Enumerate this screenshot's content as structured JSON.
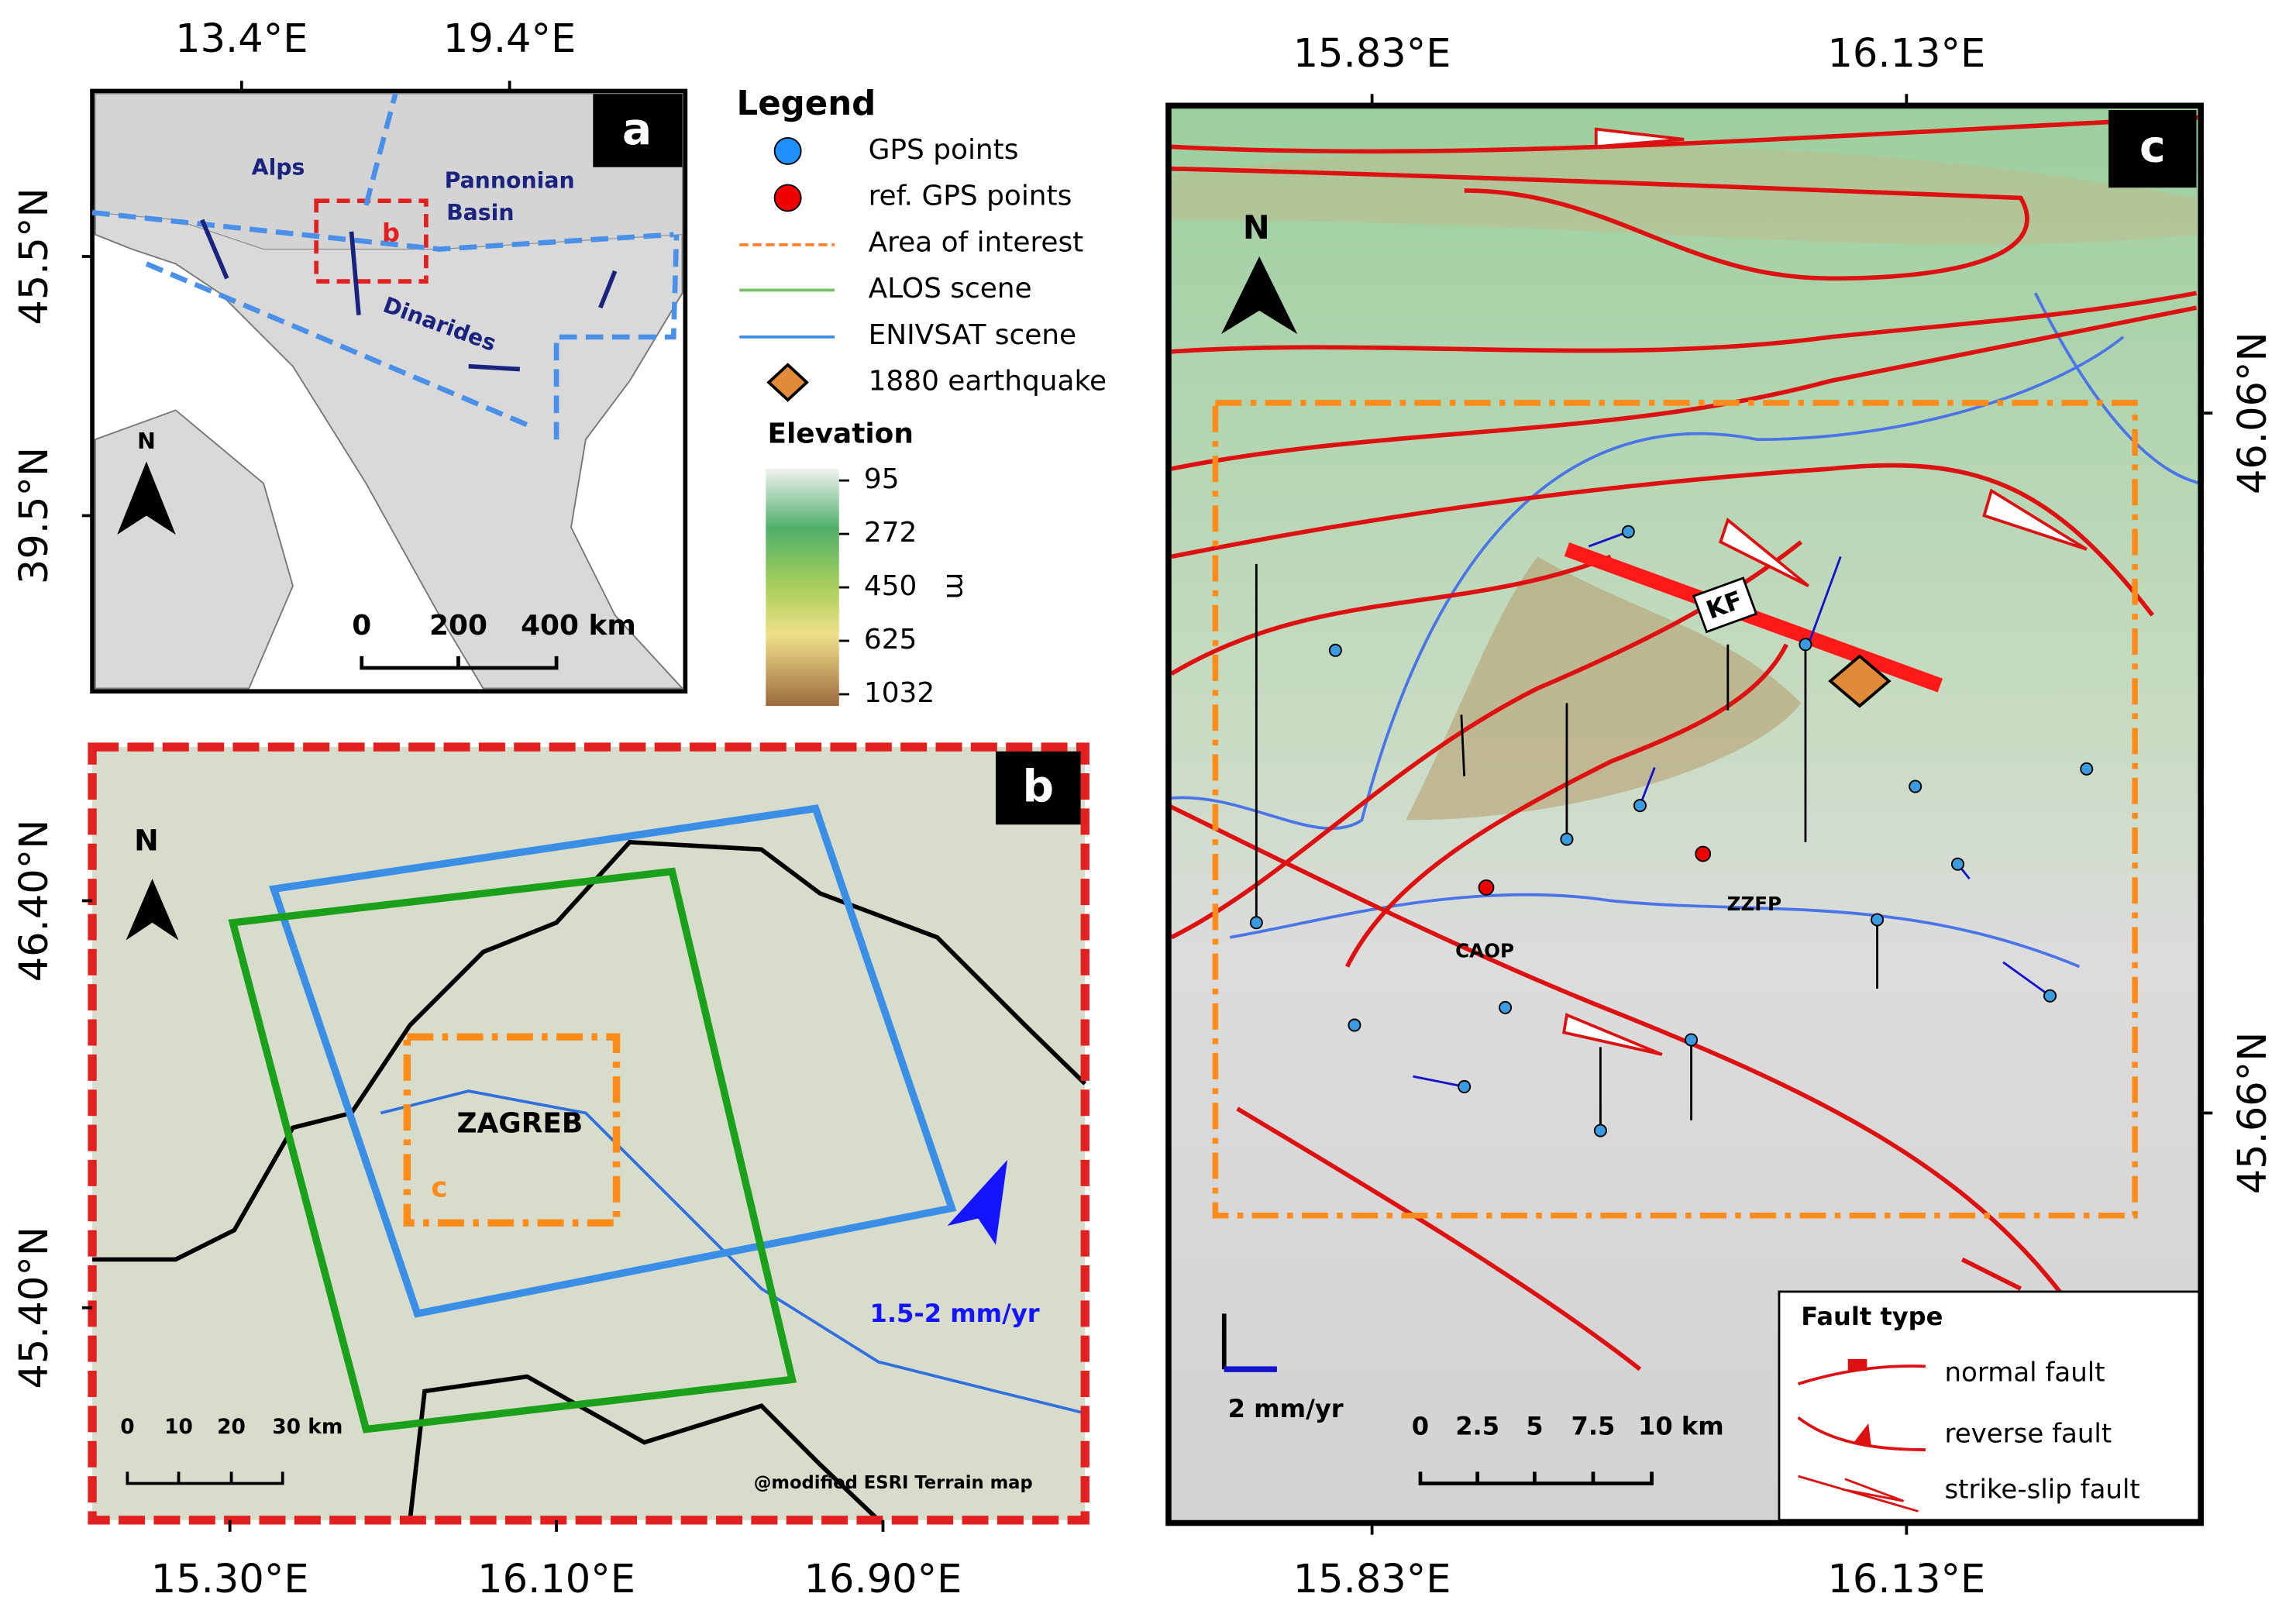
{
  "panel_a": {
    "label": "a",
    "x_ticks": [
      "13.4°E",
      "19.4°E"
    ],
    "y_ticks": [
      "45.5°N",
      "39.5°N"
    ],
    "regions": {
      "alps": "Alps",
      "pannonian": [
        "Pannonian",
        "Basin"
      ],
      "dinarides": "Dinarides"
    },
    "inset_label": "b",
    "north": "N",
    "scale_bar": [
      "0",
      "200",
      "400 km"
    ]
  },
  "legend": {
    "title": "Legend",
    "items": [
      "GPS points",
      "ref. GPS points",
      "Area of interest",
      "ALOS scene",
      "ENIVSAT scene",
      "1880 earthquake"
    ],
    "elevation": {
      "title": "Elevation",
      "ticks": [
        95,
        272,
        450,
        625,
        1032
      ],
      "unit": "m"
    }
  },
  "panel_b": {
    "label": "b",
    "x_ticks": [
      "15.30°E",
      "16.10°E",
      "16.90°E"
    ],
    "y_ticks": [
      "46.40°N",
      "45.40°N"
    ],
    "north": "N",
    "city": "ZAGREB",
    "aoi_label": "c",
    "velocity": "1.5-2 mm/yr",
    "scale_bar": [
      "0",
      "10",
      "20",
      "30 km"
    ],
    "credit": "@modified ESRI Terrain map"
  },
  "panel_c": {
    "label": "c",
    "x_ticks": [
      "15.83°E",
      "16.13°E"
    ],
    "y_ticks": [
      "46.06°N",
      "45.66°N"
    ],
    "north": "N",
    "fault_labels": [
      "KF",
      "CAOP",
      "ZZFP"
    ],
    "velocity_scale": "2 mm/yr",
    "scale_bar": [
      "0",
      "2.5",
      "5",
      "7.5",
      "10 km"
    ],
    "fault_type": {
      "title": "Fault type",
      "items": [
        "normal fault",
        "reverse fault",
        "strike-slip fault"
      ]
    }
  }
}
